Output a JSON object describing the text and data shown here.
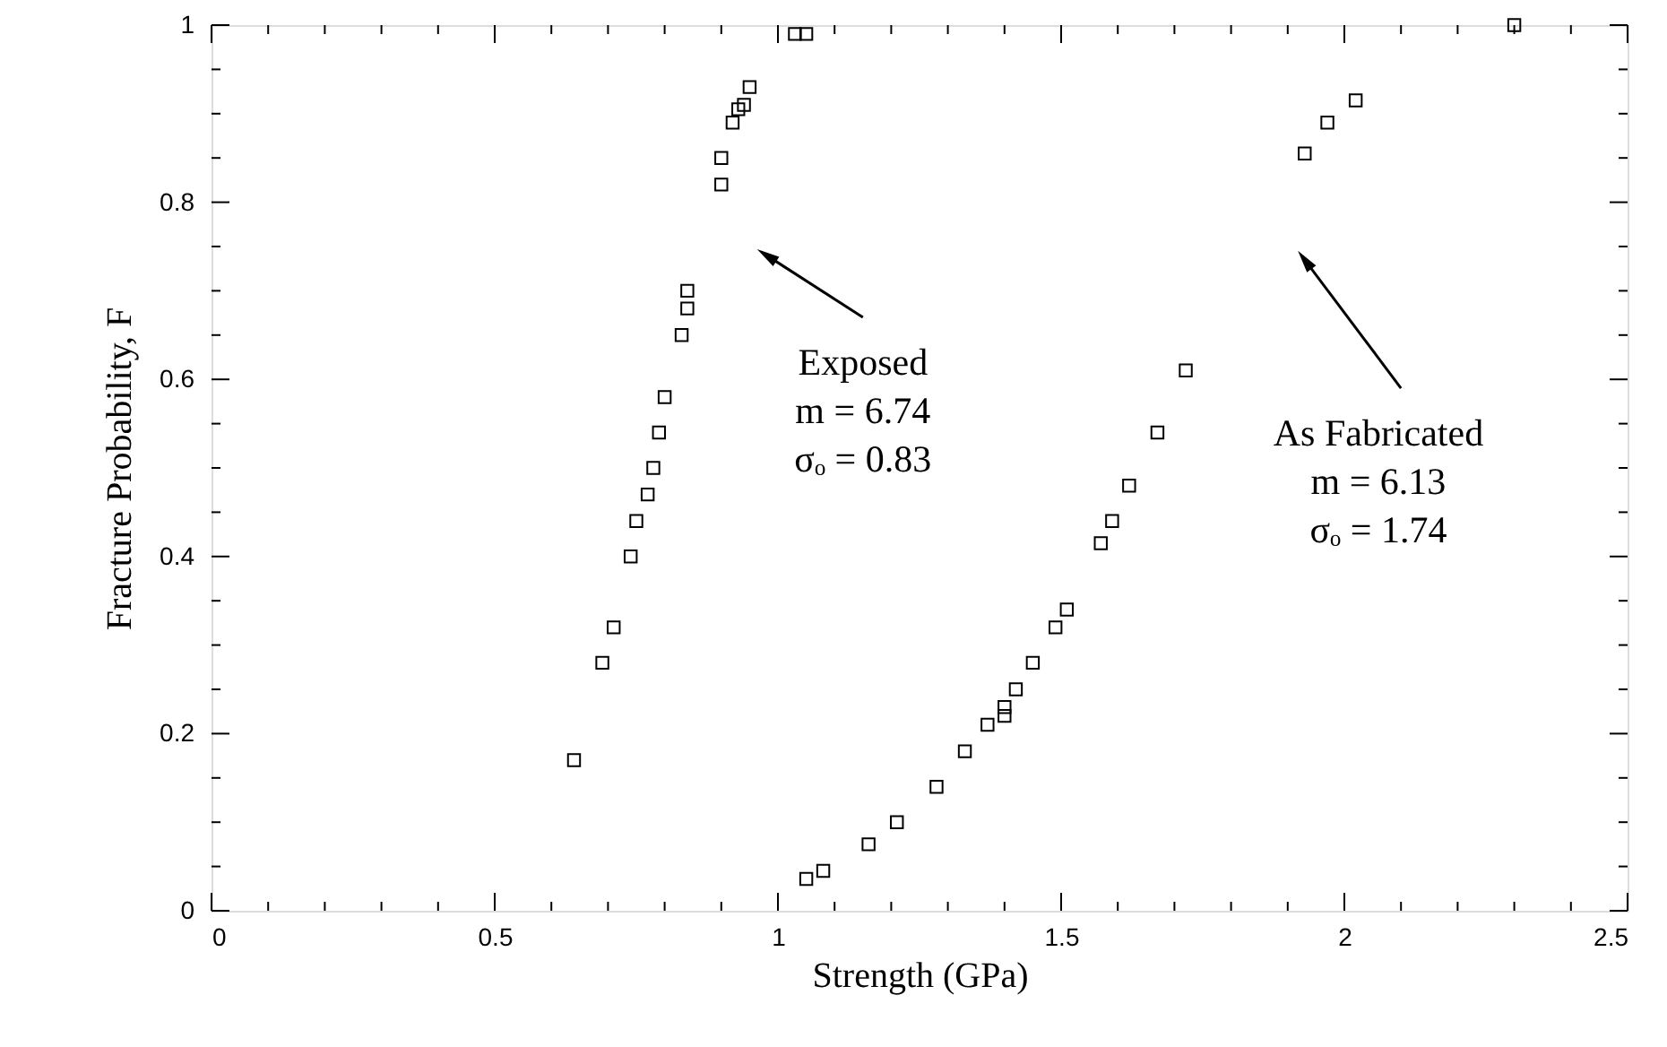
{
  "chart_data": {
    "type": "scatter",
    "xlabel": "Strength (GPa)",
    "ylabel": "Fracture Probability, F",
    "marker": "square",
    "grid": false,
    "xlim": [
      0,
      2.5
    ],
    "ylim": [
      0,
      1
    ],
    "xticks": [
      0,
      {
        "value": 0.1,
        "label": null
      },
      {
        "value": 0.2,
        "label": null
      },
      {
        "value": 0.3,
        "label": null
      },
      {
        "value": 0.4,
        "label": null
      },
      0.5,
      {
        "value": 0.6,
        "label": null
      },
      {
        "value": 0.7,
        "label": null
      },
      {
        "value": 0.8,
        "label": null
      },
      {
        "value": 0.9,
        "label": null
      },
      1,
      {
        "value": 1.1,
        "label": null
      },
      {
        "value": 1.2,
        "label": null
      },
      {
        "value": 1.3,
        "label": null
      },
      {
        "value": 1.4,
        "label": null
      },
      1.5,
      {
        "value": 1.6,
        "label": null
      },
      {
        "value": 1.7,
        "label": null
      },
      {
        "value": 1.8,
        "label": null
      },
      {
        "value": 1.9,
        "label": null
      },
      2,
      {
        "value": 2.1,
        "label": null
      },
      {
        "value": 2.2,
        "label": null
      },
      {
        "value": 2.3,
        "label": null
      },
      {
        "value": 2.4,
        "label": null
      },
      2.5
    ],
    "yticks": [
      0,
      {
        "value": 0.05,
        "label": null
      },
      {
        "value": 0.1,
        "label": null
      },
      {
        "value": 0.15,
        "label": null
      },
      0.2,
      {
        "value": 0.25,
        "label": null
      },
      {
        "value": 0.3,
        "label": null
      },
      {
        "value": 0.35,
        "label": null
      },
      0.4,
      {
        "value": 0.45,
        "label": null
      },
      {
        "value": 0.5,
        "label": null
      },
      {
        "value": 0.55,
        "label": null
      },
      0.6,
      {
        "value": 0.65,
        "label": null
      },
      {
        "value": 0.7,
        "label": null
      },
      {
        "value": 0.75,
        "label": null
      },
      0.8,
      {
        "value": 0.85,
        "label": null
      },
      {
        "value": 0.9,
        "label": null
      },
      {
        "value": 0.95,
        "label": null
      },
      1
    ],
    "series": [
      {
        "color": "#000000",
        "x": [
          0.64,
          0.69,
          0.71,
          0.74,
          0.75,
          0.77,
          0.78,
          0.79,
          0.8,
          0.83,
          0.84,
          0.84,
          0.9,
          0.9,
          0.92,
          0.93,
          0.94,
          0.95,
          1.03,
          1.05
        ],
        "values": [
          0.17,
          0.28,
          0.32,
          0.4,
          0.44,
          0.47,
          0.5,
          0.54,
          0.58,
          0.65,
          0.68,
          0.7,
          0.82,
          0.85,
          0.89,
          0.905,
          0.91,
          0.93,
          0.99,
          0.99
        ]
      },
      {
        "color": "#000000",
        "x": [
          1.05,
          1.08,
          1.16,
          1.21,
          1.28,
          1.33,
          1.37,
          1.4,
          1.4,
          1.42,
          1.45,
          1.49,
          1.51,
          1.57,
          1.59,
          1.62,
          1.67,
          1.72,
          1.93,
          1.97,
          2.02,
          2.3
        ],
        "values": [
          0.036,
          0.045,
          0.075,
          0.1,
          0.14,
          0.18,
          0.21,
          0.22,
          0.23,
          0.25,
          0.28,
          0.32,
          0.34,
          0.415,
          0.44,
          0.48,
          0.54,
          0.61,
          0.855,
          0.89,
          0.915,
          1.0
        ]
      }
    ],
    "annotations": [
      {
        "text": "Exposed\nm = 6.74\nσₒ = 0.83",
        "x": 0.98,
        "y": 0.74
      },
      {
        "text": "As Fabricated\nm = 6.13\nσₒ = 1.74",
        "x": 1.93,
        "y": 0.735
      }
    ]
  }
}
